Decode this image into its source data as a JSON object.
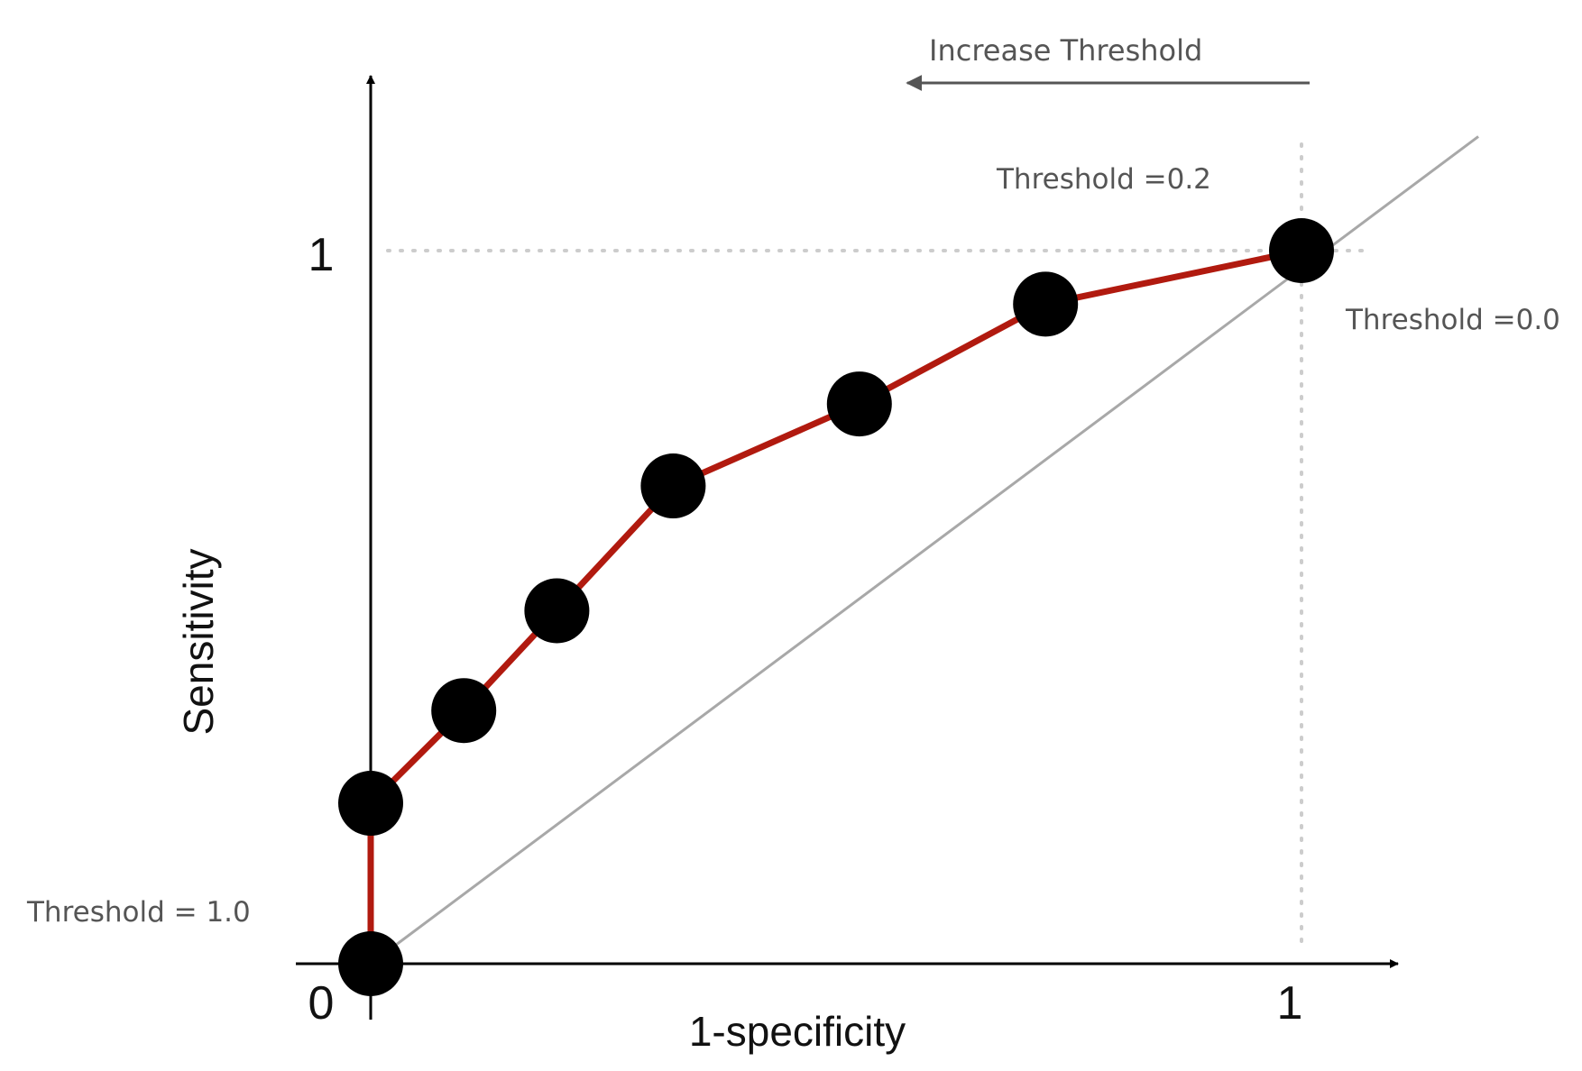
{
  "chart_data": {
    "type": "line",
    "xlabel": "1-specificity",
    "ylabel": "Sensitivity",
    "xlim": [
      0,
      1
    ],
    "ylim": [
      0,
      1
    ],
    "x_ticks": [
      "0",
      "1"
    ],
    "y_ticks": [
      "1"
    ],
    "grid": false,
    "series": [
      {
        "points": [
          {
            "x": 0.0,
            "y": 0.0
          },
          {
            "x": 0.0,
            "y": 0.225
          },
          {
            "x": 0.1,
            "y": 0.355
          },
          {
            "x": 0.2,
            "y": 0.495
          },
          {
            "x": 0.325,
            "y": 0.67
          },
          {
            "x": 0.525,
            "y": 0.785
          },
          {
            "x": 0.725,
            "y": 0.925
          },
          {
            "x": 1.0,
            "y": 1.0
          }
        ],
        "color": "#b11a0f"
      }
    ],
    "diagonal": {
      "x": [
        0,
        1.19
      ],
      "y": [
        0,
        1.16
      ],
      "color": "#a8a8a8"
    },
    "reference_lines": {
      "x": 1,
      "y": 1,
      "style": "dotted",
      "color": "#cccccc"
    },
    "annotations": {
      "increase_threshold": "Increase Threshold",
      "threshold_02": "Threshold =0.2",
      "threshold_00": "Threshold =0.0",
      "threshold_10": "Threshold = 1.0"
    },
    "colors": {
      "curve": "#b11a0f",
      "points": "#000000",
      "axis": "#000000",
      "text": "#555555"
    }
  }
}
